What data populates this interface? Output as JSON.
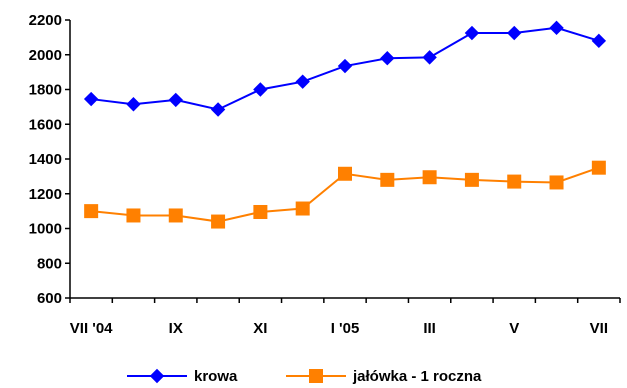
{
  "chart_data": {
    "type": "line",
    "title": "",
    "xlabel": "",
    "ylabel": "",
    "ylim": [
      600,
      2200
    ],
    "y_ticks": [
      600,
      800,
      1000,
      1200,
      1400,
      1600,
      1800,
      2000,
      2200
    ],
    "x_tick_labels": [
      "VII '04",
      "IX",
      "XI",
      "I '05",
      "III",
      "V",
      "VII"
    ],
    "grid": false,
    "legend": "bottom",
    "series": [
      {
        "name": "krowa",
        "color": "#0000ff",
        "marker": "diamond",
        "values": [
          1745,
          1715,
          1740,
          1685,
          1800,
          1845,
          1935,
          1980,
          1985,
          2125,
          2125,
          2155,
          2080
        ]
      },
      {
        "name": "jałówka - 1 roczna",
        "color": "#ff8000",
        "marker": "square",
        "values": [
          1100,
          1075,
          1075,
          1040,
          1095,
          1115,
          1315,
          1280,
          1295,
          1280,
          1270,
          1265,
          1350
        ]
      }
    ]
  }
}
